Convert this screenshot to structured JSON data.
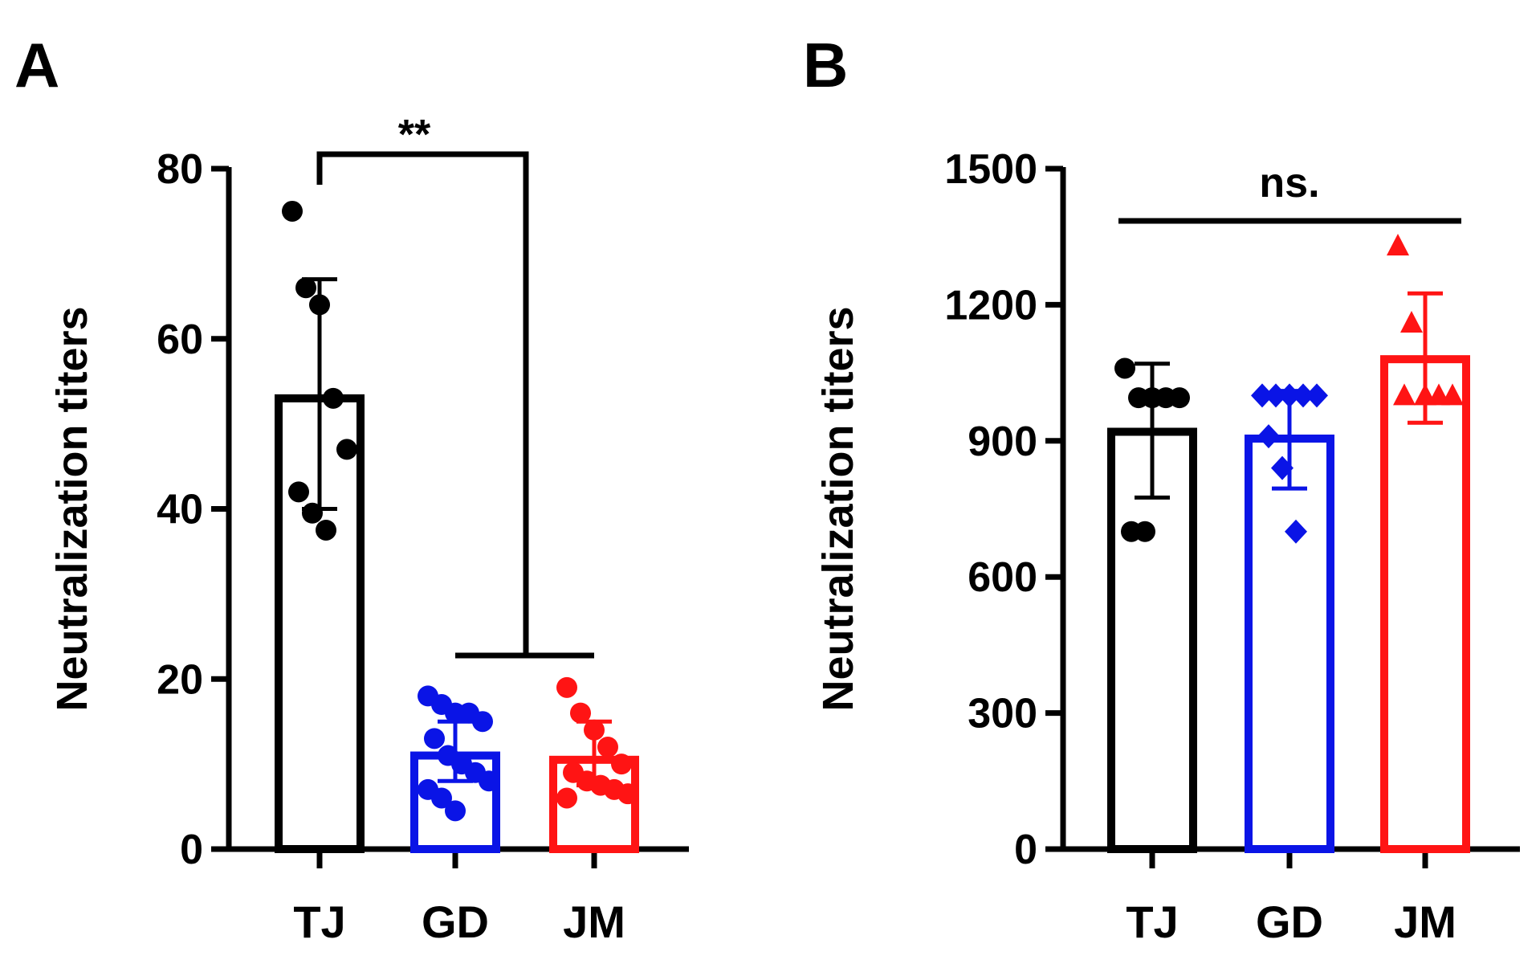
{
  "colors": {
    "TJ": "#000000",
    "GD": "#0a14e6",
    "JM": "#ff1414",
    "axis": "#000000"
  },
  "chart_data": [
    {
      "panel": "A",
      "type": "bar",
      "ylabel": "Neutralization titers",
      "ylim": [
        0,
        80
      ],
      "yticks": [
        0,
        20,
        40,
        60,
        80
      ],
      "categories": [
        "TJ",
        "GD",
        "JM"
      ],
      "series": [
        {
          "name": "TJ",
          "mean": 53,
          "sd_low": 40,
          "sd_high": 67,
          "marker": "circle",
          "color": "#000000",
          "points": [
            75,
            66,
            64,
            53,
            47,
            42,
            39.5,
            37.5
          ]
        },
        {
          "name": "GD",
          "mean": 11,
          "sd_low": 8,
          "sd_high": 15,
          "marker": "circle",
          "color": "#0a14e6",
          "points": [
            18,
            17,
            16,
            16,
            15,
            13,
            11,
            10,
            9,
            8,
            7,
            6,
            4.5
          ]
        },
        {
          "name": "JM",
          "mean": 10.5,
          "sd_low": 7.5,
          "sd_high": 15,
          "marker": "circle",
          "color": "#ff1414",
          "points": [
            19,
            16,
            14,
            12,
            10,
            9,
            8,
            7.5,
            7,
            6.5,
            6
          ]
        }
      ],
      "significance": [
        {
          "from": "TJ",
          "to": [
            "GD",
            "JM"
          ],
          "label": "**"
        }
      ]
    },
    {
      "panel": "B",
      "type": "bar",
      "ylabel": "Neutralization titers",
      "ylim": [
        0,
        1500
      ],
      "yticks": [
        0,
        300,
        600,
        900,
        1200,
        1500
      ],
      "categories": [
        "TJ",
        "GD",
        "JM"
      ],
      "series": [
        {
          "name": "TJ",
          "mean": 920,
          "sd_low": 775,
          "sd_high": 1070,
          "marker": "circle",
          "color": "#000000",
          "points": [
            1060,
            995,
            995,
            995,
            995,
            700,
            700
          ]
        },
        {
          "name": "GD",
          "mean": 905,
          "sd_low": 795,
          "sd_high": 1010,
          "marker": "diamond",
          "color": "#0a14e6",
          "points": [
            1000,
            1000,
            1000,
            1000,
            1000,
            910,
            840,
            700
          ]
        },
        {
          "name": "JM",
          "mean": 1080,
          "sd_low": 940,
          "sd_high": 1225,
          "marker": "triangle",
          "color": "#ff1414",
          "points": [
            1330,
            1160,
            1000,
            1000,
            1000,
            1000
          ]
        }
      ],
      "significance": [
        {
          "from": "TJ",
          "to": [
            "JM"
          ],
          "label": "ns."
        }
      ]
    }
  ]
}
